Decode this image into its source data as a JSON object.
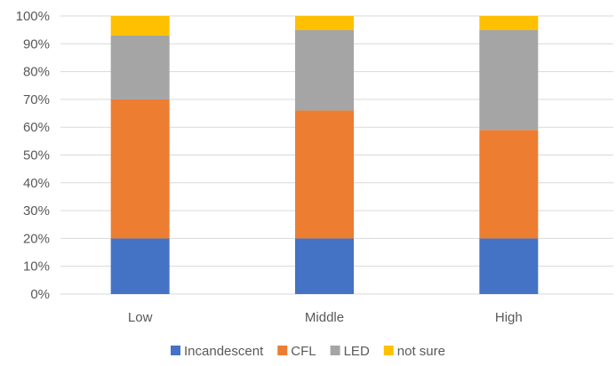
{
  "chart_data": {
    "type": "bar",
    "stacked": true,
    "orientation": "vertical",
    "categories": [
      "Low",
      "Middle",
      "High"
    ],
    "series": [
      {
        "name": "Incandescent",
        "color": "#4472C4",
        "values": [
          20,
          20,
          20
        ]
      },
      {
        "name": "CFL",
        "color": "#ED7D31",
        "values": [
          50,
          46,
          39
        ]
      },
      {
        "name": "LED",
        "color": "#A5A5A5",
        "values": [
          23,
          29,
          36
        ]
      },
      {
        "name": "not sure",
        "color": "#FFC000",
        "values": [
          7,
          5,
          5
        ]
      }
    ],
    "ylim": [
      0,
      100
    ],
    "yticks": [
      "0%",
      "10%",
      "20%",
      "30%",
      "40%",
      "50%",
      "60%",
      "70%",
      "80%",
      "90%",
      "100%"
    ],
    "title": "",
    "xlabel": "",
    "ylabel": "",
    "grid": true,
    "legend_position": "bottom"
  }
}
